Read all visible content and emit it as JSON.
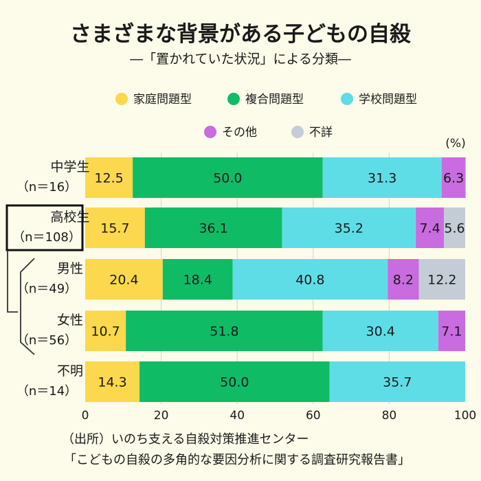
{
  "header": {
    "title": "さまざまな背景がある子どもの自殺",
    "subtitle": "―「置かれていた状況」による分類―"
  },
  "unit_label": "(%)",
  "source": {
    "line1": "（出所）いのち支える自殺対策推進センター",
    "line2": "「こどもの自殺の多角的な要因分析に関する調査研究報告書」"
  },
  "chart_data": {
    "type": "bar",
    "orientation": "horizontal",
    "stacked": true,
    "xlim": [
      0,
      100
    ],
    "x_ticks": [
      "0",
      "20",
      "40",
      "60",
      "80",
      "100"
    ],
    "grid": true,
    "legend_position": "top",
    "categories": [
      {
        "label": "中学生",
        "n": "（n＝16）",
        "highlight": false,
        "bracket": false
      },
      {
        "label": "高校生",
        "n": "（n＝108）",
        "highlight": true,
        "bracket": false
      },
      {
        "label": "男性",
        "n": "（n＝49）",
        "highlight": false,
        "bracket": true
      },
      {
        "label": "女性",
        "n": "（n＝56）",
        "highlight": false,
        "bracket": true
      },
      {
        "label": "不明",
        "n": "（n＝14）",
        "highlight": false,
        "bracket": false
      }
    ],
    "series": [
      {
        "name": "家庭問題型",
        "color": "#fbd84d",
        "values": [
          12.5,
          15.7,
          20.4,
          10.7,
          14.3
        ]
      },
      {
        "name": "複合問題型",
        "color": "#0fbb65",
        "values": [
          50.0,
          36.1,
          18.4,
          51.8,
          50.0
        ]
      },
      {
        "name": "学校問題型",
        "color": "#5fdde6",
        "values": [
          31.3,
          35.2,
          40.8,
          30.4,
          35.7
        ]
      },
      {
        "name": "その他",
        "color": "#c86ce0",
        "values": [
          6.3,
          7.4,
          8.2,
          7.1,
          null
        ]
      },
      {
        "name": "不詳",
        "color": "#c4cdd6",
        "values": [
          null,
          5.6,
          12.2,
          null,
          null
        ]
      }
    ],
    "value_labels": [
      [
        "12.5",
        "50.0",
        "31.3",
        "6.3",
        ""
      ],
      [
        "15.7",
        "36.1",
        "35.2",
        "7.4",
        "5.6"
      ],
      [
        "20.4",
        "18.4",
        "40.8",
        "8.2",
        "12.2"
      ],
      [
        "10.7",
        "51.8",
        "30.4",
        "7.1",
        ""
      ],
      [
        "14.3",
        "50.0",
        "35.7",
        "",
        ""
      ]
    ]
  }
}
